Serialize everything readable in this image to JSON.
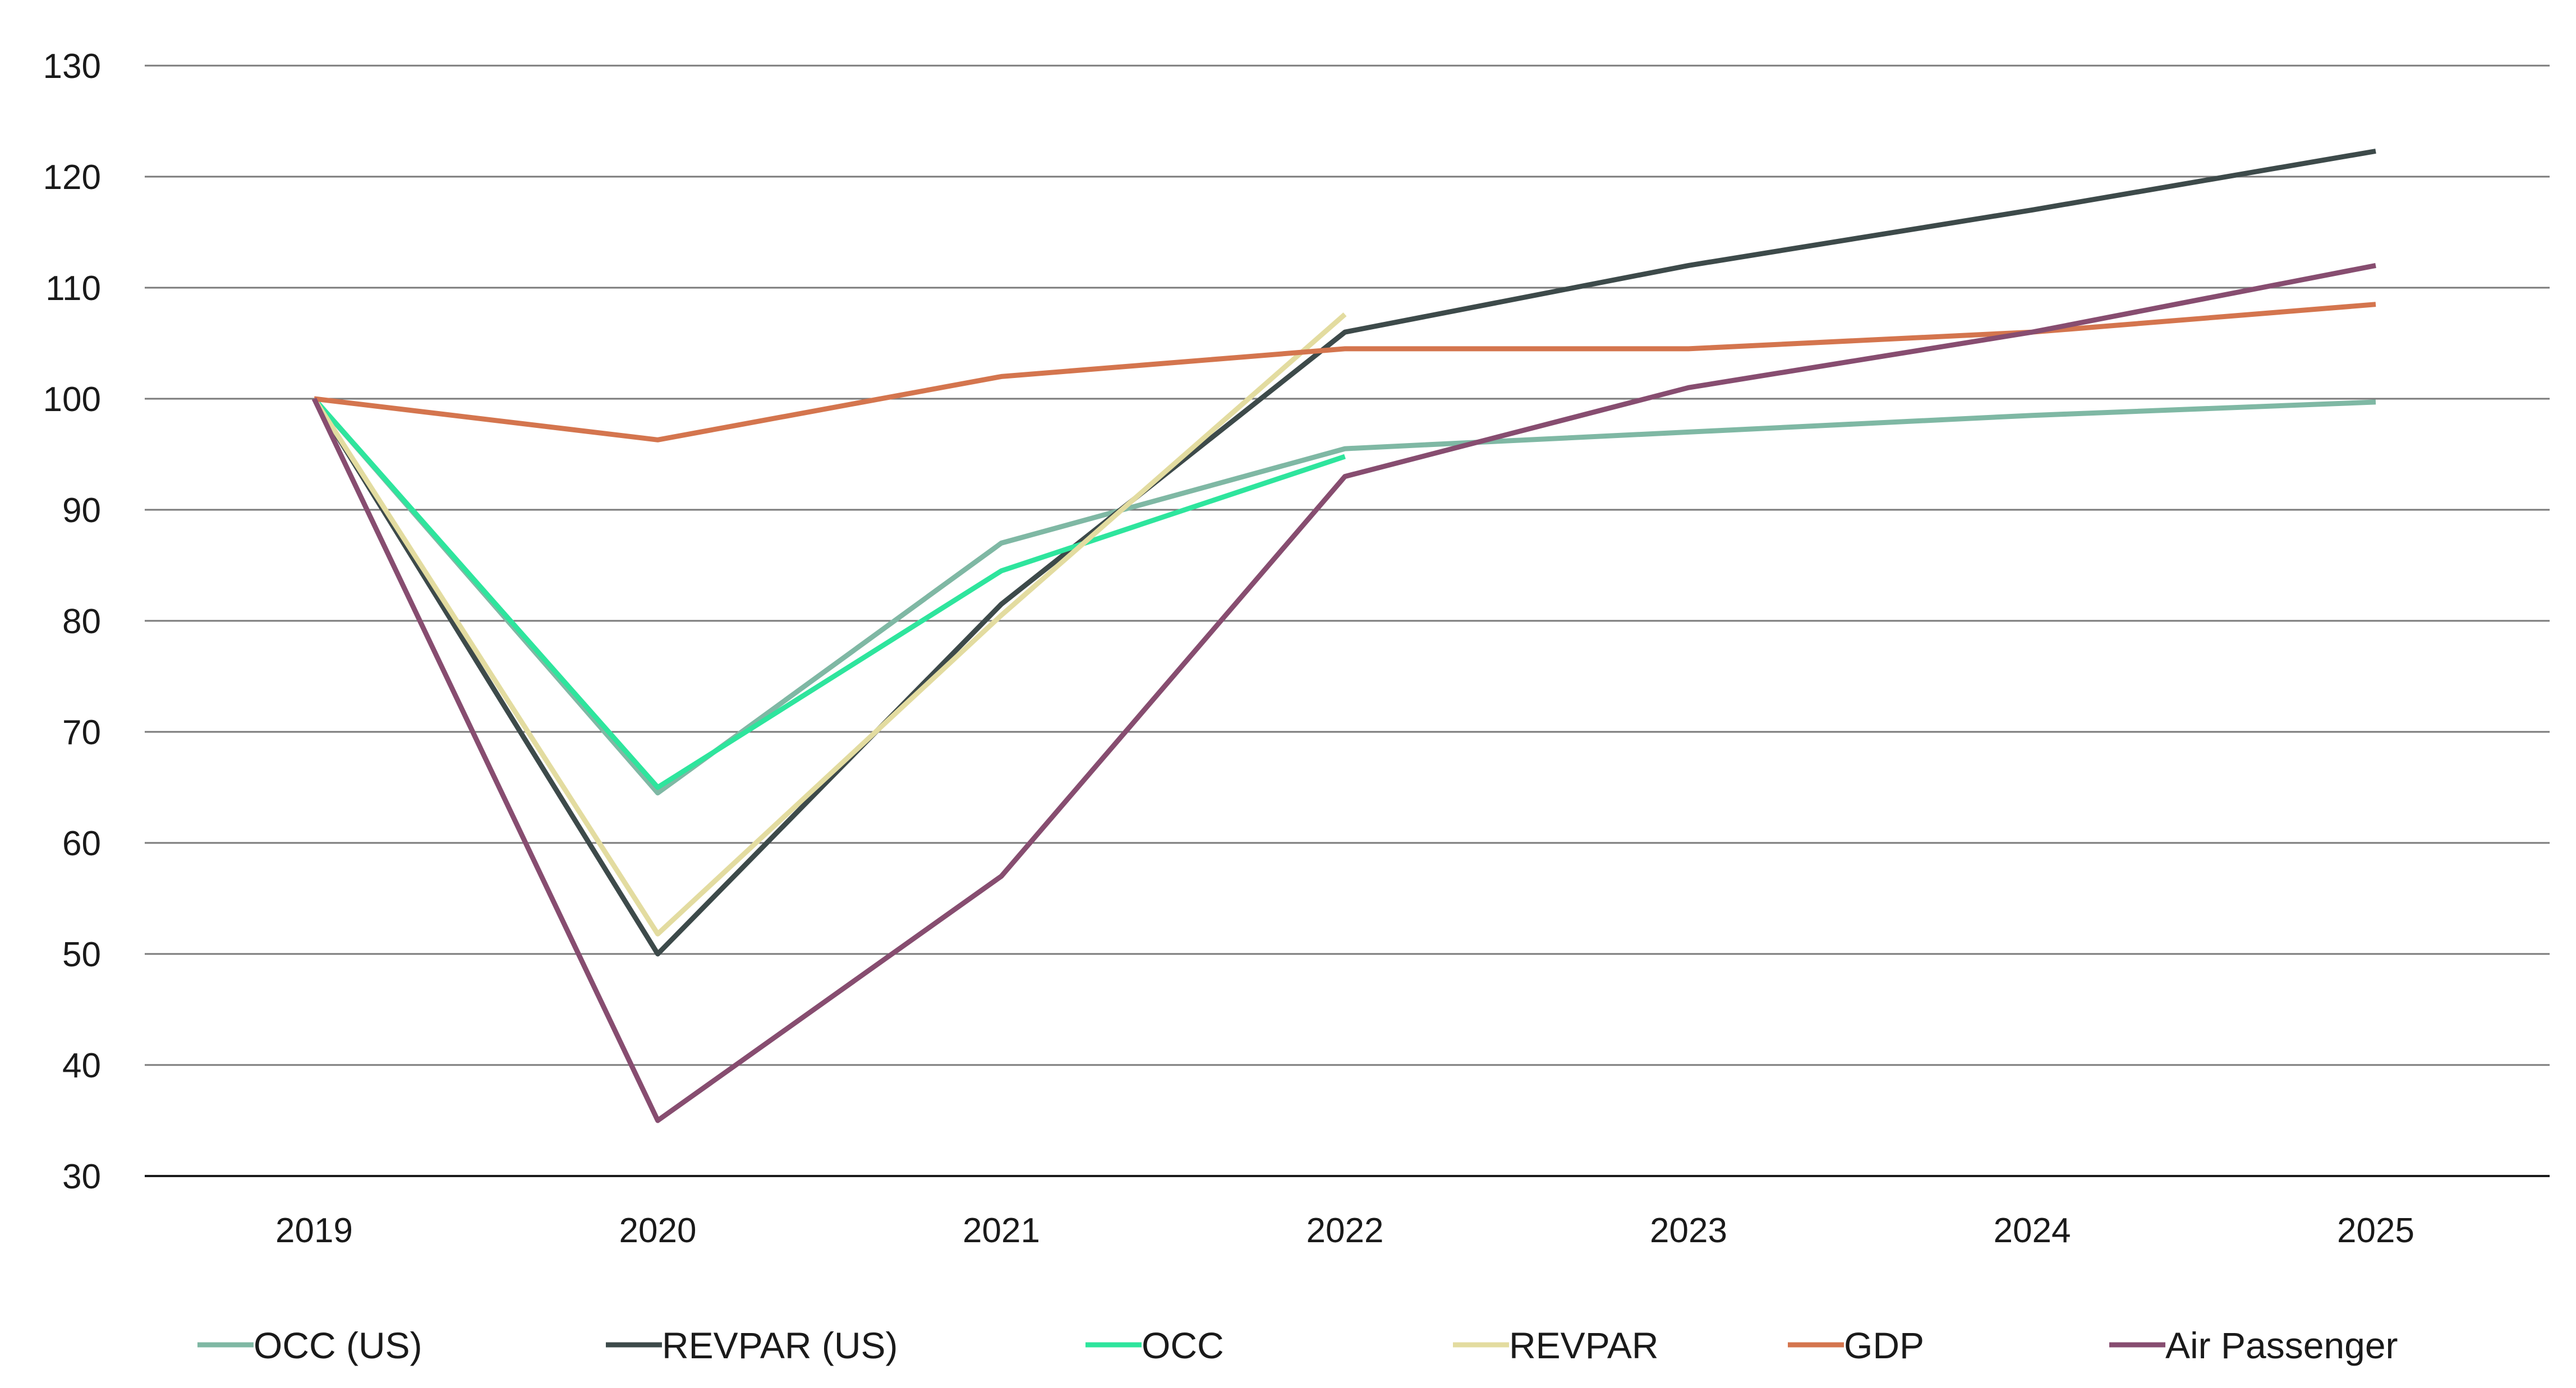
{
  "chart_data": {
    "type": "line",
    "title": "",
    "xlabel": "",
    "ylabel": "",
    "categories": [
      "2019",
      "2020",
      "2021",
      "2022",
      "2023",
      "2024",
      "2025"
    ],
    "ylim": [
      30,
      130
    ],
    "yticks": [
      30,
      40,
      50,
      60,
      70,
      80,
      90,
      100,
      110,
      120,
      130
    ],
    "grid": true,
    "legend_position": "bottom",
    "series": [
      {
        "name": "OCC (US)",
        "color": "#7fb8a4",
        "values": [
          100,
          64.5,
          87,
          95.5,
          97,
          98.5,
          99.7
        ]
      },
      {
        "name": "REVPAR (US)",
        "color": "#3d4a4a",
        "values": [
          100,
          50,
          81.5,
          106,
          112,
          117,
          122.3
        ]
      },
      {
        "name": "OCC",
        "color": "#2ee59d",
        "values": [
          100,
          65,
          84.5,
          94.8,
          null,
          null,
          null
        ]
      },
      {
        "name": "REVPAR",
        "color": "#e3dca0",
        "values": [
          100,
          51.8,
          80.5,
          107.6,
          null,
          null,
          null
        ]
      },
      {
        "name": "GDP",
        "color": "#d4754e",
        "values": [
          100,
          96.3,
          102,
          104.5,
          104.5,
          106,
          108.5
        ]
      },
      {
        "name": "Air Passenger",
        "color": "#874d70",
        "values": [
          100,
          35,
          57,
          93,
          101,
          106,
          112
        ]
      }
    ]
  }
}
